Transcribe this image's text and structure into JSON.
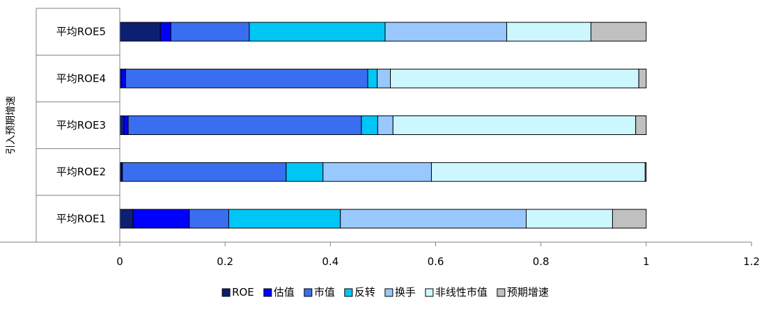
{
  "chart_data": {
    "type": "bar",
    "orientation": "horizontal",
    "stacked": true,
    "group_label": "引入预期增速",
    "categories": [
      "平均ROE1",
      "平均ROE2",
      "平均ROE3",
      "平均ROE4",
      "平均ROE5"
    ],
    "series": [
      {
        "name": "ROE",
        "color": "#0d1f70",
        "values": [
          0.025,
          0.003,
          0.008,
          0.003,
          0.077
        ]
      },
      {
        "name": "估值",
        "color": "#0000ff",
        "values": [
          0.107,
          0.002,
          0.008,
          0.008,
          0.02
        ]
      },
      {
        "name": "市值",
        "color": "#3a6ef0",
        "values": [
          0.075,
          0.311,
          0.443,
          0.46,
          0.149
        ]
      },
      {
        "name": "反转",
        "color": "#00c6f5",
        "values": [
          0.212,
          0.07,
          0.031,
          0.018,
          0.258
        ]
      },
      {
        "name": "换手",
        "color": "#99c8ff",
        "values": [
          0.353,
          0.206,
          0.029,
          0.025,
          0.231
        ]
      },
      {
        "name": "非线性市值",
        "color": "#ccf7ff",
        "values": [
          0.164,
          0.406,
          0.461,
          0.472,
          0.16
        ]
      },
      {
        "name": "预期增速",
        "color": "#c0c0c0",
        "values": [
          0.064,
          0.002,
          0.02,
          0.014,
          0.105
        ]
      }
    ],
    "x_ticks": [
      "0",
      "0.2",
      "0.4",
      "0.6",
      "0.8",
      "1",
      "1.2"
    ],
    "xlim": [
      0,
      1.2
    ],
    "grid": false,
    "legend_position": "bottom"
  }
}
